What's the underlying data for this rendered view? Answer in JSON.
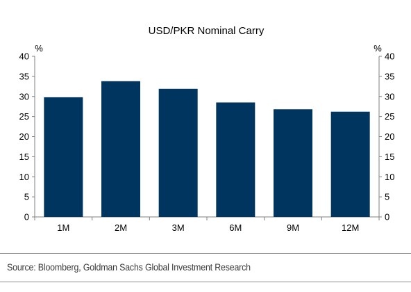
{
  "chart_data": {
    "type": "bar",
    "title": "USD/PKR Nominal Carry",
    "categories": [
      "1M",
      "2M",
      "3M",
      "6M",
      "9M",
      "12M"
    ],
    "values": [
      29.8,
      33.8,
      31.9,
      28.5,
      26.8,
      26.2
    ],
    "ylim": [
      0,
      40
    ],
    "yticks": [
      0,
      5,
      10,
      15,
      20,
      25,
      30,
      35,
      40
    ],
    "y_unit_left": "%",
    "y_unit_right": "%",
    "secondary_y_axis": true,
    "grid": false,
    "legend": "none",
    "bar_color": "#003560"
  },
  "footer": {
    "source": "Source: Bloomberg, Goldman Sachs Global Investment Research"
  },
  "colors": {
    "bar": "#003560",
    "axis": "#7f7f7f",
    "rule": "#8c8c8c"
  }
}
